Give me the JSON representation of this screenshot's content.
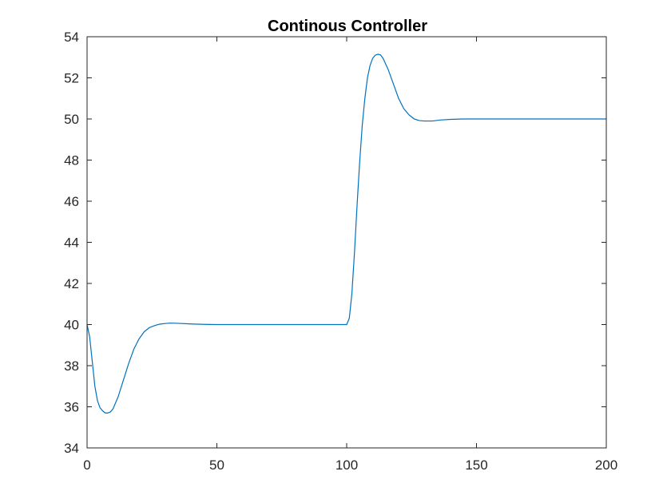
{
  "chart_data": {
    "type": "line",
    "title": "Continous Controller",
    "xlabel": "",
    "ylabel": "",
    "xlim": [
      0,
      200
    ],
    "ylim": [
      34,
      54
    ],
    "xticks": [
      0,
      50,
      100,
      150,
      200
    ],
    "yticks": [
      34,
      36,
      38,
      40,
      42,
      44,
      46,
      48,
      50,
      52,
      54
    ],
    "grid": false,
    "line_color": "#0072BD",
    "series": [
      {
        "x": [
          0,
          1,
          2,
          3,
          4,
          5,
          6,
          7,
          8,
          9,
          10,
          12,
          14,
          16,
          18,
          20,
          22,
          24,
          26,
          28,
          30,
          32,
          35,
          40,
          45,
          50,
          60,
          70,
          80,
          90,
          99,
          100,
          101,
          102,
          103,
          104,
          105,
          106,
          107,
          108,
          109,
          110,
          111,
          112,
          113,
          114,
          116,
          118,
          120,
          122,
          124,
          126,
          128,
          130,
          133,
          136,
          140,
          145,
          150,
          160,
          170,
          180,
          190,
          200
        ],
        "y": [
          40.0,
          39.4,
          38.2,
          37.0,
          36.3,
          35.95,
          35.8,
          35.7,
          35.7,
          35.75,
          35.9,
          36.5,
          37.3,
          38.1,
          38.8,
          39.3,
          39.65,
          39.85,
          39.95,
          40.02,
          40.05,
          40.07,
          40.06,
          40.03,
          40.01,
          40.0,
          40.0,
          40.0,
          40.0,
          40.0,
          40.0,
          40.0,
          40.3,
          41.5,
          43.5,
          45.8,
          47.9,
          49.7,
          51.0,
          52.0,
          52.6,
          52.95,
          53.1,
          53.15,
          53.12,
          52.95,
          52.4,
          51.7,
          51.0,
          50.5,
          50.2,
          50.0,
          49.92,
          49.9,
          49.9,
          49.95,
          49.98,
          50.0,
          50.0,
          50.0,
          50.0,
          50.0,
          50.0,
          50.0
        ]
      }
    ]
  }
}
